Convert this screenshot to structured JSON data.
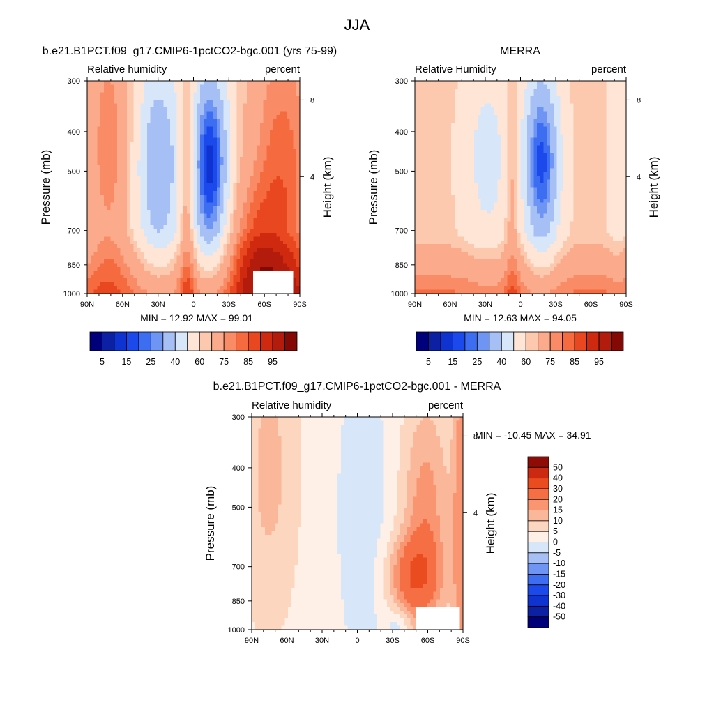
{
  "figure_title": "JJA",
  "colormap": {
    "blue_red": [
      "#00007a",
      "#0b20a3",
      "#0e33d0",
      "#1c49eb",
      "#3d6ef2",
      "#6e95f3",
      "#a6c0f6",
      "#d8e6fa",
      "#fee5d6",
      "#fcc8ae",
      "#fbab8b",
      "#f98c66",
      "#f66a3f",
      "#e9471f",
      "#cf2a10",
      "#b31b0c",
      "#840804"
    ],
    "diff": [
      "#00007a",
      "#0b20a3",
      "#0e33d0",
      "#1c49eb",
      "#3d6ef2",
      "#6e95f3",
      "#a6c0f6",
      "#d8e6fa",
      "#fef0e6",
      "#fdd6c0",
      "#fbb79a",
      "#f99570",
      "#f66f44",
      "#ea4b1f",
      "#cc2a10",
      "#8f0c06"
    ]
  },
  "chart_data": [
    {
      "type": "heatmap",
      "title": "b.e21.B1PCT.f09_g17.CMIP6-1pctCO2-bgc.001 (yrs 75-99)",
      "left_string": "Relative humidity",
      "right_string": "percent",
      "ylabel": "Pressure (mb)",
      "ylabel_right": "Height (km)",
      "xticks": [
        "90N",
        "60N",
        "30N",
        "0",
        "30S",
        "60S",
        "90S"
      ],
      "yticks": [
        "300",
        "400",
        "500",
        "700",
        "850",
        "1000"
      ],
      "yticks_right": [
        "8",
        "4"
      ],
      "stats": "MIN =  12.92   MAX =  99.01",
      "min": 12.92,
      "max": 99.01,
      "colorbar_labels": [
        "5",
        "15",
        "25",
        "40",
        "60",
        "75",
        "85",
        "95"
      ],
      "ylim": [
        1000,
        300
      ],
      "missing_region": "lower right (55S-80S, 850-1000 mb)"
    },
    {
      "type": "heatmap",
      "title": "MERRA",
      "left_string": "Relative Humidity",
      "right_string": "percent",
      "ylabel": "Pressure (mb)",
      "ylabel_right": "Height (km)",
      "xticks": [
        "90N",
        "60N",
        "30N",
        "0",
        "30S",
        "60S",
        "90S"
      ],
      "yticks": [
        "300",
        "400",
        "500",
        "700",
        "850",
        "1000"
      ],
      "yticks_right": [
        "8",
        "4"
      ],
      "stats": "MIN =  12.63   MAX =  94.05",
      "min": 12.63,
      "max": 94.05,
      "colorbar_labels": [
        "5",
        "15",
        "25",
        "40",
        "60",
        "75",
        "85",
        "95"
      ],
      "ylim": [
        1000,
        300
      ]
    },
    {
      "type": "heatmap",
      "title": "b.e21.B1PCT.f09_g17.CMIP6-1pctCO2-bgc.001 - MERRA",
      "left_string": "Relative humidity",
      "right_string": "percent",
      "ylabel": "Pressure (mb)",
      "ylabel_right": "Height (km)",
      "xticks": [
        "90N",
        "60N",
        "30N",
        "0",
        "30S",
        "60S",
        "90S"
      ],
      "yticks": [
        "300",
        "400",
        "500",
        "700",
        "850",
        "1000"
      ],
      "yticks_right": [
        "8",
        "4"
      ],
      "stats": "MIN = -10.45   MAX =  34.91",
      "min": -10.45,
      "max": 34.91,
      "colorbar_labels": [
        "50",
        "40",
        "30",
        "20",
        "15",
        "10",
        "5",
        "0",
        "-5",
        "-10",
        "-15",
        "-20",
        "-30",
        "-40",
        "-50"
      ],
      "ylim": [
        1000,
        300
      ]
    }
  ]
}
